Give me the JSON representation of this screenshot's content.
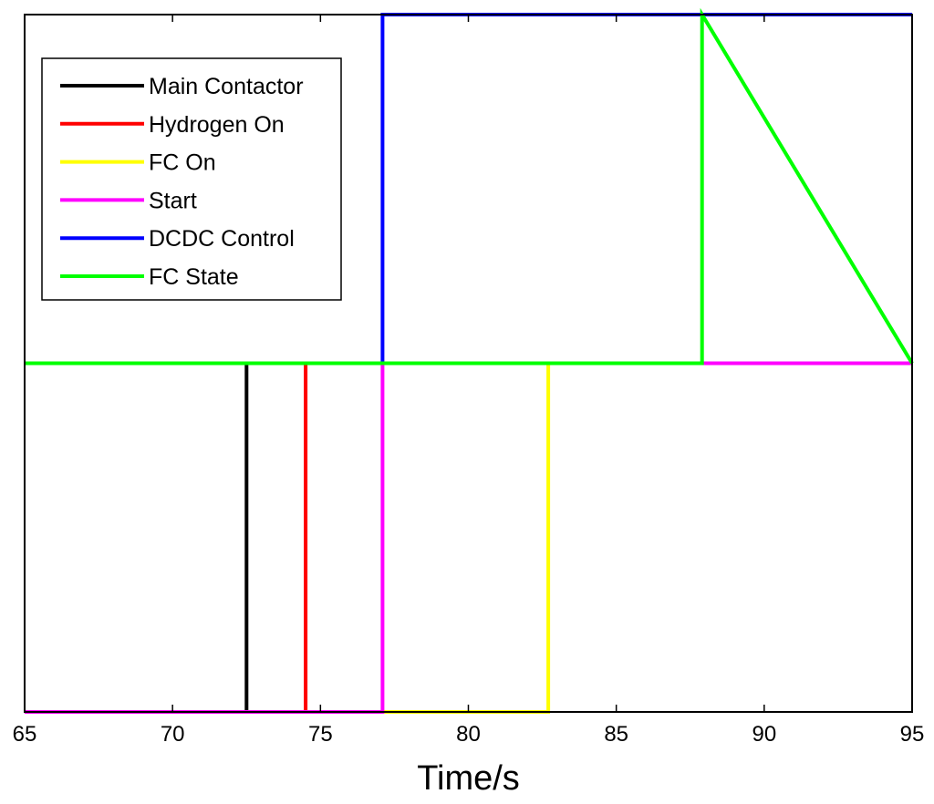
{
  "chart_data": {
    "type": "line",
    "title": "",
    "xlabel": "Time/s",
    "ylabel": "",
    "xlim": [
      65,
      95
    ],
    "ylim": [
      0,
      2
    ],
    "xticks": [
      65,
      70,
      75,
      80,
      85,
      90,
      95
    ],
    "grid": false,
    "legend_position": "top-left",
    "series": [
      {
        "name": "Main Contactor",
        "color": "#000000",
        "x": [
          65,
          72.5,
          72.5,
          95
        ],
        "y": [
          0,
          0,
          1,
          1
        ]
      },
      {
        "name": "Hydrogen On",
        "color": "#ff0000",
        "x": [
          65,
          74.5,
          74.5,
          95
        ],
        "y": [
          0,
          0,
          1,
          1
        ]
      },
      {
        "name": "FC On",
        "color": "#ffff00",
        "x": [
          65,
          82.7,
          82.7,
          95
        ],
        "y": [
          0,
          0,
          1,
          1
        ]
      },
      {
        "name": "Start",
        "color": "#ff00ff",
        "x": [
          65,
          77.1,
          77.1,
          88,
          88,
          95
        ],
        "y": [
          0,
          0,
          1,
          1,
          1,
          1
        ]
      },
      {
        "name": "DCDC Control",
        "color": "#0000ff",
        "x": [
          65,
          77.1,
          77.1,
          95
        ],
        "y": [
          1,
          1,
          2,
          2
        ]
      },
      {
        "name": "FC State",
        "color": "#00ff00",
        "x": [
          65,
          87.9,
          87.9,
          95
        ],
        "y": [
          1,
          1,
          2,
          1
        ]
      }
    ]
  }
}
